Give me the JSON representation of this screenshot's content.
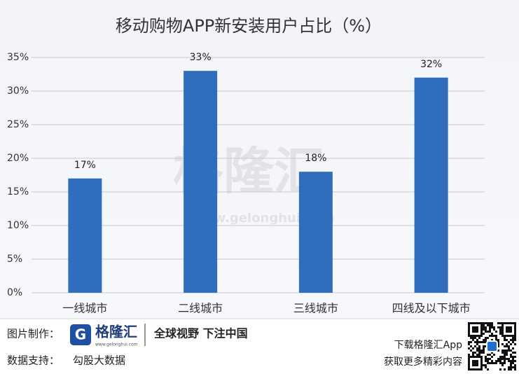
{
  "chart_data": {
    "type": "bar",
    "title": "移动购物APP新安装用户占比（%）",
    "categories": [
      "一线城市",
      "二线城市",
      "三线城市",
      "四线及以下城市"
    ],
    "values": [
      17,
      33,
      18,
      32
    ],
    "value_labels": [
      "17%",
      "33%",
      "18%",
      "32%"
    ],
    "color": "#2f6ebd",
    "ylim": [
      0,
      35
    ],
    "yticks": [
      {
        "value": 0,
        "label": "0%"
      },
      {
        "value": 5,
        "label": "5%"
      },
      {
        "value": 10,
        "label": "10%"
      },
      {
        "value": 15,
        "label": "15%"
      },
      {
        "value": 20,
        "label": "20%"
      },
      {
        "value": 25,
        "label": "25%"
      },
      {
        "value": 30,
        "label": "30%"
      },
      {
        "value": 35,
        "label": "35%"
      }
    ],
    "grid": true
  },
  "watermark": {
    "text": "格隆汇",
    "url": "www.gelonghui.com"
  },
  "footer": {
    "credit_label": "图片制作：",
    "logo_text": "格隆汇",
    "logo_url": "www.gelonghui.com",
    "slogan": "全球视野 下注中国",
    "source_label": "数据支持：",
    "source": "勾股大数据",
    "app_line1": "下载格隆汇App",
    "app_line2": "获取更多精彩内容"
  }
}
